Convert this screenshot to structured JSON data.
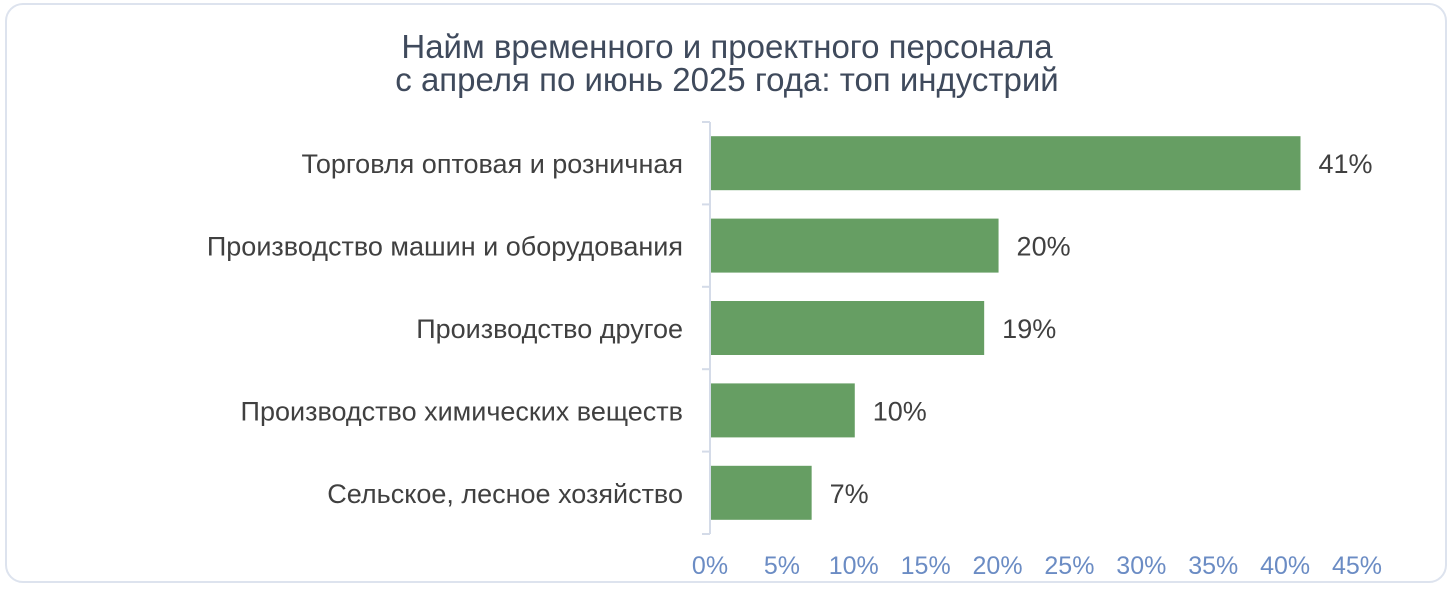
{
  "chart_data": {
    "type": "bar",
    "orientation": "horizontal",
    "title_lines": [
      "Найм временного и проектного персонала",
      "с апреля по июнь 2025 года: топ индустрий"
    ],
    "categories": [
      "Торговля оптовая и розничная",
      "Производство машин и оборудования",
      "Производство другое",
      "Производство химических веществ",
      "Сельское, лесное хозяйство"
    ],
    "values": [
      41,
      20,
      19,
      10,
      7
    ],
    "value_labels": [
      "41%",
      "20%",
      "19%",
      "10%",
      "7%"
    ],
    "xlim": [
      0,
      45
    ],
    "xticks": [
      0,
      5,
      10,
      15,
      20,
      25,
      30,
      35,
      40,
      45
    ],
    "xtick_labels": [
      "0%",
      "5%",
      "10%",
      "15%",
      "20%",
      "25%",
      "30%",
      "35%",
      "40%",
      "45%"
    ],
    "grid": false,
    "bar_color": "#669e63",
    "axis_color": "#d4dbe8",
    "tick_label_color": "#6b8cc4"
  }
}
